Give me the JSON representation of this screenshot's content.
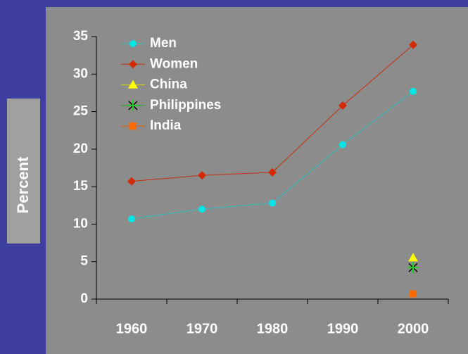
{
  "chart_data": {
    "type": "line",
    "y_label": "Percent",
    "categories": [
      "1960",
      "1970",
      "1980",
      "1990",
      "2000"
    ],
    "series": [
      {
        "name": "Men",
        "color": "#00e5e5",
        "line_color": "#33bdbd",
        "marker": "circle",
        "values": [
          10.7,
          12.0,
          12.8,
          20.6,
          27.7
        ]
      },
      {
        "name": "Women",
        "color": "#d42a00",
        "line_color": "#c43010",
        "marker": "diamond",
        "values": [
          15.7,
          16.5,
          16.9,
          25.8,
          33.9
        ]
      },
      {
        "name": "China",
        "color": "#ffff00",
        "line_color": "#d8d800",
        "marker": "triangle",
        "values": [
          null,
          null,
          null,
          null,
          5.5
        ]
      },
      {
        "name": "Philippines",
        "color": "#22cc22",
        "line_color": "#22aa22",
        "marker": "star",
        "values": [
          null,
          null,
          null,
          null,
          4.2
        ]
      },
      {
        "name": "India",
        "color": "#ff6a00",
        "line_color": "#e06000",
        "marker": "square",
        "values": [
          null,
          null,
          null,
          null,
          0.7
        ]
      }
    ],
    "ylim": [
      0,
      35
    ],
    "yticks": [
      0,
      5,
      10,
      15,
      20,
      25,
      30,
      35
    ],
    "grid": false,
    "legend": "top-left"
  }
}
